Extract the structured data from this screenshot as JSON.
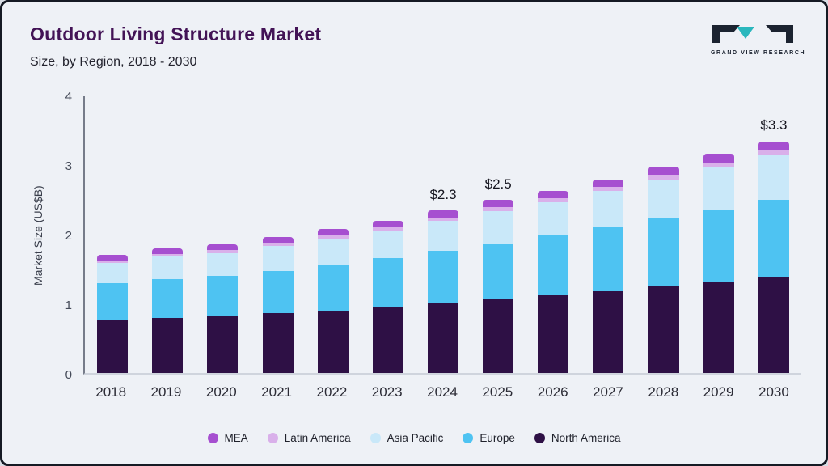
{
  "header": {
    "title": "Outdoor Living Structure Market",
    "subtitle": "Size, by Region, 2018 - 2030",
    "logo_text": "GRAND VIEW RESEARCH"
  },
  "chart_data": {
    "type": "bar",
    "stacked": true,
    "title": "Outdoor Living Structure Market Size, by Region, 2018 - 2030",
    "ylabel": "Market Size (US$B)",
    "ylim": [
      0,
      4
    ],
    "yticks": [
      0,
      1,
      2,
      3,
      4
    ],
    "grid": false,
    "legend_position": "bottom",
    "categories": [
      "2018",
      "2019",
      "2020",
      "2021",
      "2022",
      "2023",
      "2024",
      "2025",
      "2026",
      "2027",
      "2028",
      "2029",
      "2030"
    ],
    "series": [
      {
        "name": "North America",
        "color": "#2e1045",
        "values": [
          0.75,
          0.79,
          0.82,
          0.86,
          0.9,
          0.95,
          1.0,
          1.06,
          1.12,
          1.18,
          1.25,
          1.31,
          1.38
        ]
      },
      {
        "name": "Europe",
        "color": "#4ec3f2",
        "values": [
          0.54,
          0.56,
          0.57,
          0.61,
          0.65,
          0.7,
          0.75,
          0.8,
          0.86,
          0.92,
          0.97,
          1.03,
          1.1
        ]
      },
      {
        "name": "Asia Pacific",
        "color": "#c9e8f9",
        "values": [
          0.29,
          0.32,
          0.33,
          0.36,
          0.38,
          0.4,
          0.43,
          0.46,
          0.48,
          0.52,
          0.56,
          0.6,
          0.64
        ]
      },
      {
        "name": "Latin America",
        "color": "#d9b0ea",
        "values": [
          0.04,
          0.04,
          0.05,
          0.05,
          0.05,
          0.05,
          0.05,
          0.06,
          0.06,
          0.06,
          0.07,
          0.07,
          0.07
        ]
      },
      {
        "name": "MEA",
        "color": "#a64fd0",
        "values": [
          0.08,
          0.08,
          0.08,
          0.08,
          0.09,
          0.09,
          0.1,
          0.1,
          0.11,
          0.11,
          0.12,
          0.13,
          0.13
        ]
      }
    ],
    "bar_labels": [
      "",
      "",
      "",
      "",
      "",
      "",
      "$2.3",
      "$2.5",
      "",
      "",
      "",
      "",
      "$3.3"
    ],
    "legend": [
      "MEA",
      "Latin America",
      "Asia Pacific",
      "Europe",
      "North America"
    ],
    "logo_colors": {
      "dark": "#1b2330",
      "teal": "#2ab7bd"
    }
  }
}
